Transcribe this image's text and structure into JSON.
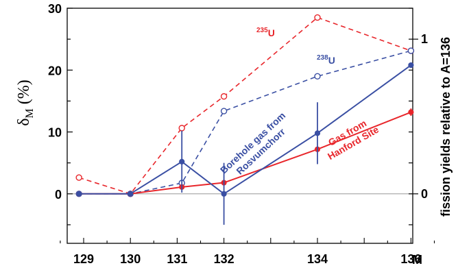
{
  "chart_data": {
    "type": "line",
    "ylabel_main": "δ",
    "ylabel_sub": "M",
    "ylabel_unit": " (%)",
    "y2label": "fission yields relative to A=136",
    "xlabel": "M",
    "x_ticks": [
      129,
      130,
      131,
      132,
      134,
      136
    ],
    "y_ticks": [
      0,
      10,
      20,
      30
    ],
    "y2_ticks": [
      {
        "value": 0,
        "label": "0"
      },
      {
        "value": 1,
        "label": "1"
      }
    ],
    "ylim": [
      -8,
      30
    ],
    "y2lim": [
      -0.32,
      1.2
    ],
    "series": [
      {
        "name": "235U",
        "axis": "right",
        "style": "dashed",
        "marker": "open-circle",
        "color": "#e8262b",
        "points": [
          [
            128.9,
            0.105
          ],
          [
            130.0,
            0.0
          ],
          [
            131.1,
            0.425
          ],
          [
            132.0,
            0.63
          ],
          [
            134.0,
            1.14
          ],
          [
            136.0,
            0.925
          ]
        ]
      },
      {
        "name": "238U",
        "axis": "right",
        "style": "dashed",
        "marker": "open-circle",
        "color": "#3a4fa3",
        "points": [
          [
            128.9,
            0.0
          ],
          [
            130.0,
            0.0
          ],
          [
            131.1,
            0.07
          ],
          [
            132.0,
            0.535
          ],
          [
            134.0,
            0.76
          ],
          [
            136.0,
            0.925
          ]
        ]
      },
      {
        "name": "Gas from Hanford Site",
        "axis": "left",
        "style": "solid",
        "marker": "filled-circle",
        "color": "#e8262b",
        "points": [
          [
            128.9,
            0.0
          ],
          [
            130.0,
            0.0
          ],
          [
            131.1,
            1.1
          ],
          [
            132.0,
            1.8
          ],
          [
            134.0,
            7.2
          ],
          [
            136.0,
            13.2
          ]
        ],
        "errors": [
          0,
          0,
          0,
          0,
          0,
          0.6
        ]
      },
      {
        "name": "Borehole gas from Rosvumchorr",
        "axis": "left",
        "style": "solid",
        "marker": "filled-circle",
        "color": "#3a4fa3",
        "points": [
          [
            128.9,
            0.0
          ],
          [
            130.0,
            0.0
          ],
          [
            131.1,
            5.2
          ],
          [
            132.0,
            0.0
          ],
          [
            134.0,
            9.8
          ],
          [
            136.0,
            20.8
          ]
        ],
        "errors": [
          0,
          0,
          5.0,
          5.0,
          5.0,
          0
        ]
      }
    ],
    "annotations": {
      "u235": {
        "sup": "235",
        "text": "U"
      },
      "u238": {
        "sup": "238",
        "text": "U"
      },
      "hanford": [
        "Gas from",
        "Hanford Site"
      ],
      "borehole": [
        "Borehole gas from",
        "Rosvumchorr"
      ]
    }
  }
}
